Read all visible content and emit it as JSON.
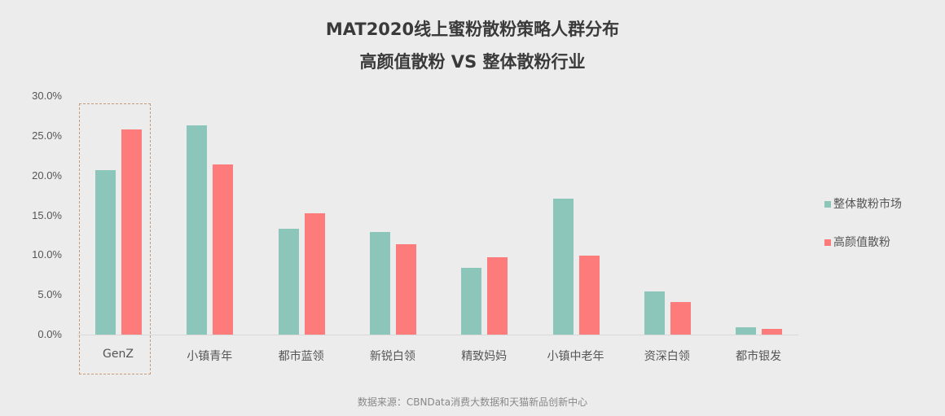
{
  "chart_data": {
    "type": "bar",
    "title": "MAT2020线上蜜粉散粉策略人群分布",
    "subtitle": "高颜值散粉 VS 整体散粉行业",
    "xlabel": "",
    "ylabel": "",
    "ylim": [
      0,
      30
    ],
    "yticks": [
      "0.0%",
      "5.0%",
      "10.0%",
      "15.0%",
      "20.0%",
      "25.0%",
      "30.0%"
    ],
    "grid": false,
    "legend_position": "right",
    "categories": [
      "GenZ",
      "小镇青年",
      "都市蓝领",
      "新锐白领",
      "精致妈妈",
      "小镇中老年",
      "资深白领",
      "都市银发"
    ],
    "series": [
      {
        "name": "整体散粉市场",
        "color": "#8cc5b9",
        "values": [
          20.7,
          26.3,
          13.3,
          12.9,
          8.4,
          17.1,
          5.4,
          0.9
        ]
      },
      {
        "name": "高颜值散粉",
        "color": "#fe7b7b",
        "values": [
          25.8,
          21.4,
          15.3,
          11.4,
          9.7,
          9.9,
          4.1,
          0.7
        ]
      }
    ],
    "highlighted_category": "GenZ",
    "source": "数据来源：CBNData消费大数据和天猫新品创新中心"
  }
}
